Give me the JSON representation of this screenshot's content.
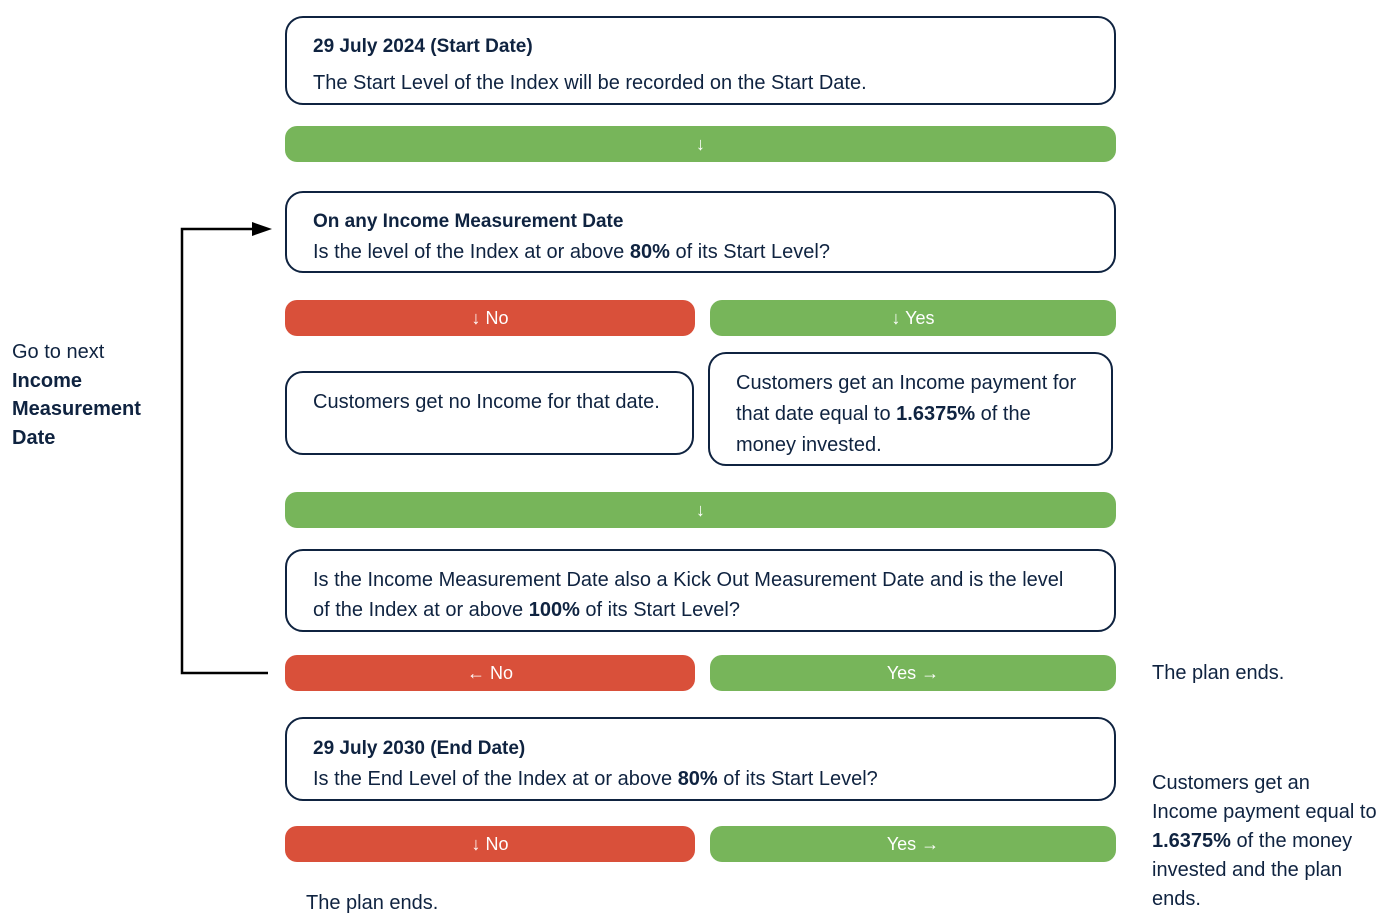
{
  "start": {
    "title": "29 July 2024 (Start Date)",
    "text": "The Start Level of the Index will be recorded on the Start Date.",
    "arrow": "↓"
  },
  "income_check": {
    "title": "On any Income Measurement Date",
    "question": [
      "Is the level of the Index at or above ",
      "80%",
      " of its Start Level?"
    ],
    "no": "↓ No",
    "yes": "↓ Yes"
  },
  "no_income": "Customers get no Income for that date.",
  "income_payment": [
    "Customers get an Income payment for that date equal to ",
    "1.6375%",
    " of the money invested."
  ],
  "continue_arrow": "↓",
  "kick_out_check": {
    "question": [
      "Is the Income Measurement Date also a Kick Out Measurement Date and is the level of the Index at or above ",
      "100%",
      " of its Start Level?"
    ],
    "no": "← No",
    "yes": "Yes →",
    "yes_result": "The plan ends."
  },
  "end": {
    "title": "29 July 2030 (End Date)",
    "question": [
      "Is the End Level of the Index at or above ",
      "80%",
      " of its Start Level?"
    ],
    "no": "↓ No",
    "yes": "Yes →",
    "no_result": "The plan ends.",
    "yes_result": [
      "Customers get an Income payment equal to ",
      "1.6375%",
      " of the money invested and the plan ends."
    ]
  },
  "loop_label": [
    "Go to next",
    "Income Measurement Date"
  ]
}
